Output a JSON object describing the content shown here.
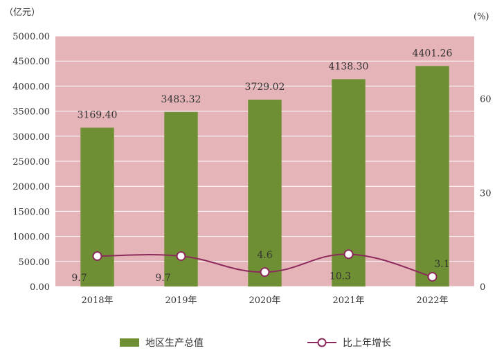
{
  "chart_data": {
    "type": "bar",
    "categories": [
      "2018年",
      "2019年",
      "2020年",
      "2021年",
      "2022年"
    ],
    "left_axis": {
      "unit": "（亿元）",
      "ylim": [
        0,
        5000
      ],
      "ticks": [
        "0.00",
        "500.00",
        "1000.00",
        "1500.00",
        "2000.00",
        "2500.00",
        "3000.00",
        "3500.00",
        "4000.00",
        "4500.00",
        "5000.00"
      ]
    },
    "right_axis": {
      "unit": "(%)",
      "ylim": [
        0,
        80
      ],
      "ticks": [
        "0",
        "30",
        "60"
      ]
    },
    "series": [
      {
        "name": "地区生产总值",
        "type": "bar",
        "axis": "left",
        "values": [
          3169.4,
          3483.32,
          3729.02,
          4138.3,
          4401.26
        ],
        "labels": [
          "3169.40",
          "3483.32",
          "3729.02",
          "4138.30",
          "4401.26"
        ],
        "color": "#6f8f35"
      },
      {
        "name": "比上年增长",
        "type": "line",
        "axis": "right",
        "values": [
          9.7,
          9.7,
          4.6,
          10.3,
          3.1
        ],
        "labels": [
          "9.7",
          "9.7",
          "4.6",
          "10.3",
          "3.1"
        ],
        "color": "#8c2a5c"
      }
    ],
    "plot_background": "#e5b4b8",
    "grid": true,
    "legend_position": "bottom"
  }
}
